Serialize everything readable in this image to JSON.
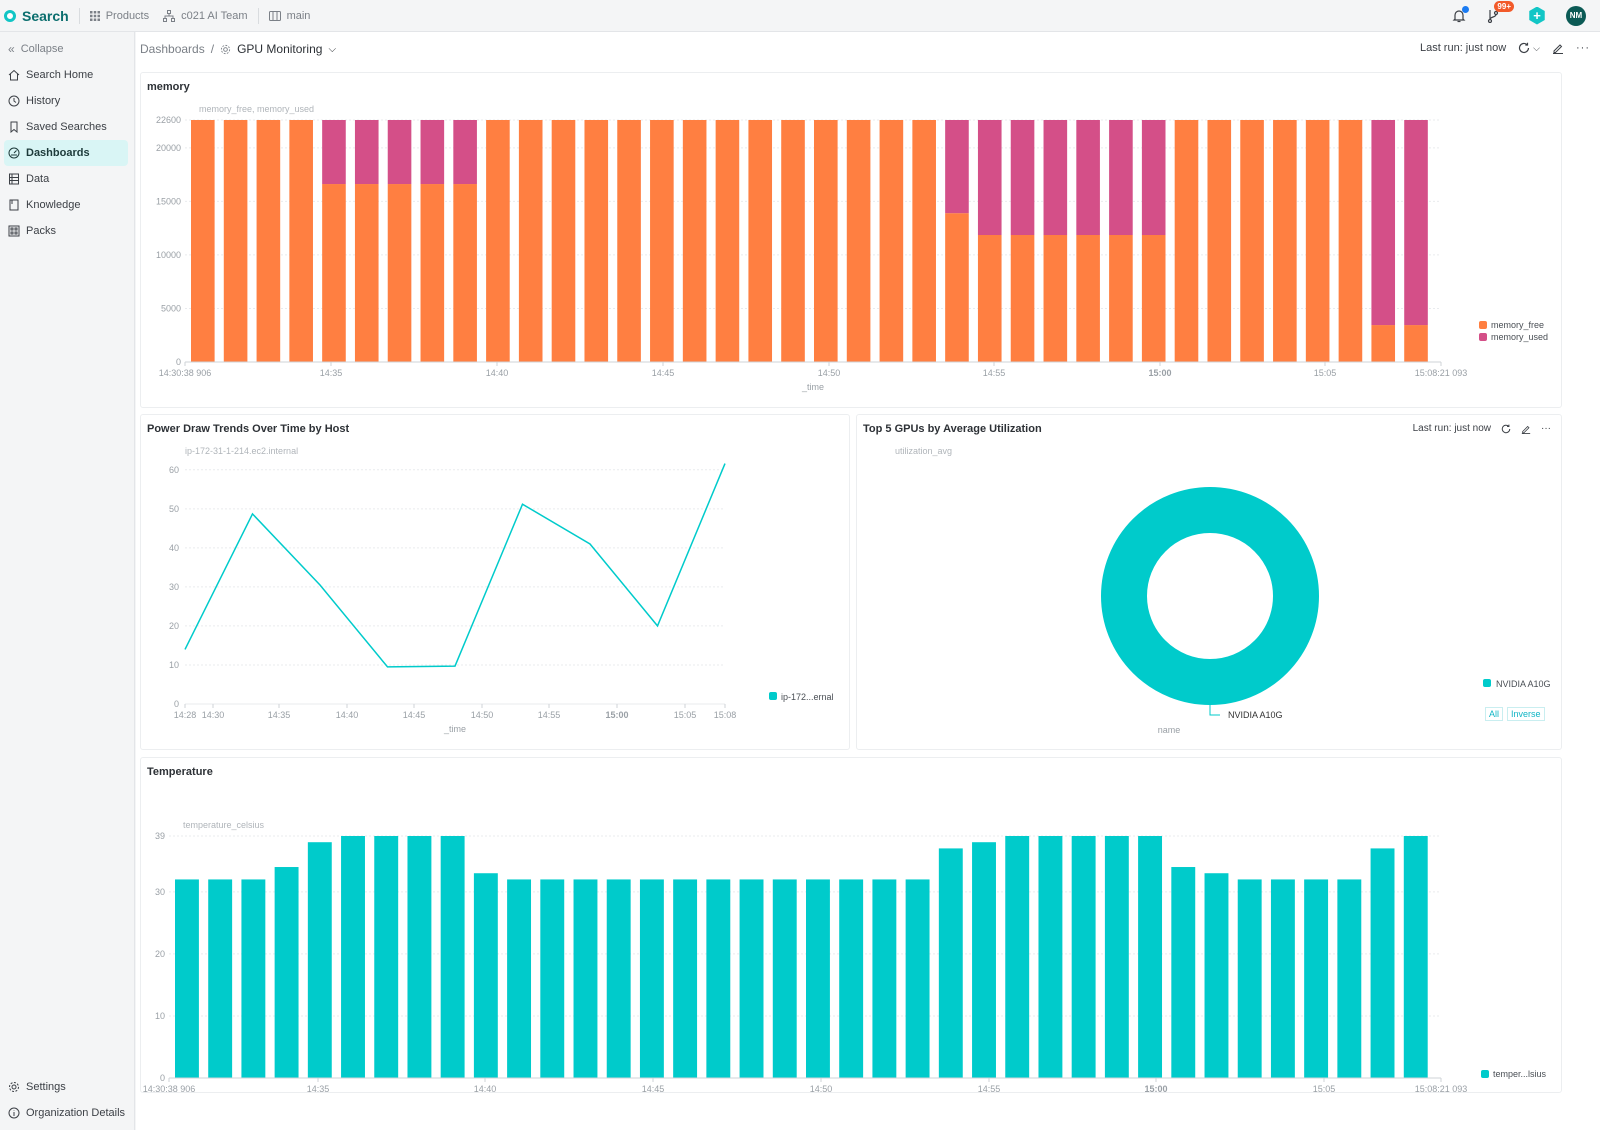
{
  "topbar": {
    "brand": "Search",
    "products": "Products",
    "team": "c021 AI Team",
    "branch": "main",
    "notifications_badge": "99+",
    "avatar_initials": "NM"
  },
  "sidebar": {
    "collapse": "Collapse",
    "items": [
      {
        "label": "Search Home",
        "icon": "home-icon"
      },
      {
        "label": "History",
        "icon": "clock-icon"
      },
      {
        "label": "Saved Searches",
        "icon": "bookmark-icon"
      },
      {
        "label": "Dashboards",
        "icon": "gauge-icon",
        "active": true
      },
      {
        "label": "Data",
        "icon": "table-icon"
      },
      {
        "label": "Knowledge",
        "icon": "book-icon"
      },
      {
        "label": "Packs",
        "icon": "grid-icon"
      }
    ],
    "bottom": [
      {
        "label": "Settings",
        "icon": "gear-icon"
      },
      {
        "label": "Organization Details",
        "icon": "info-icon"
      }
    ]
  },
  "header": {
    "breadcrumb_root": "Dashboards",
    "separator": "/",
    "dashboard_name": "GPU Monitoring",
    "last_run": "Last run: just now"
  },
  "panels": {
    "memory": {
      "title": "memory",
      "series_label": "memory_free, memory_used",
      "xlabel": "_time"
    },
    "power": {
      "title": "Power Draw Trends Over Time by Host",
      "series_label": "ip-172-31-1-214.ec2.internal",
      "xlabel": "_time",
      "legend": "ip-172...ernal"
    },
    "gpus": {
      "title": "Top 5 GPUs by Average Utilization",
      "series_label": "utilization_avg",
      "last_run": "Last run: just now",
      "xlabel": "name",
      "legend": "NVIDIA A10G",
      "slice_label": "NVIDIA A10G",
      "btn_all": "All",
      "btn_inverse": "Inverse"
    },
    "temperature": {
      "title": "Temperature",
      "series_label": "temperature_celsius",
      "xlabel": "_time",
      "legend": "temper...lsius"
    }
  },
  "colors": {
    "orange": "#ff7f41",
    "magenta": "#d44f88",
    "teal": "#00cbcb",
    "accent": "#10c5c5"
  },
  "chart_data": [
    {
      "type": "bar",
      "title": "memory",
      "stacked": true,
      "xlabel": "_time",
      "ylabel": "memory_free, memory_used",
      "ylim": [
        0,
        22600
      ],
      "yticks": [
        0,
        5000,
        10000,
        15000,
        20000,
        22600
      ],
      "xticks": [
        "14:30:38 906",
        "14:35",
        "14:40",
        "14:45",
        "14:50",
        "14:55",
        "15:00",
        "15:05",
        "15:08:21 093"
      ],
      "legend_position": "right",
      "series": [
        {
          "name": "memory_free",
          "color": "#ff7f41",
          "values": [
            22600,
            22600,
            22600,
            22600,
            16620,
            16620,
            16620,
            16620,
            16620,
            22600,
            22600,
            22600,
            22600,
            22600,
            22600,
            22600,
            22600,
            22600,
            22600,
            22600,
            22600,
            22600,
            22600,
            13900,
            11860,
            11860,
            11860,
            11860,
            11860,
            11860,
            22600,
            22600,
            22600,
            22600,
            22600,
            22600,
            3450,
            3450
          ]
        },
        {
          "name": "memory_used",
          "color": "#d44f88",
          "values": [
            0,
            0,
            0,
            0,
            5980,
            5980,
            5980,
            5980,
            5980,
            0,
            0,
            0,
            0,
            0,
            0,
            0,
            0,
            0,
            0,
            0,
            0,
            0,
            0,
            8700,
            10740,
            10740,
            10740,
            10740,
            10740,
            10740,
            0,
            0,
            0,
            0,
            0,
            0,
            19150,
            19150
          ]
        }
      ]
    },
    {
      "type": "line",
      "title": "Power Draw Trends Over Time by Host",
      "xlabel": "_time",
      "ylim": [
        0,
        62
      ],
      "yticks": [
        0,
        10,
        20,
        30,
        40,
        50,
        60
      ],
      "xticks": [
        "14:28",
        "14:30",
        "14:35",
        "14:40",
        "14:45",
        "14:50",
        "14:55",
        "15:00",
        "15:05",
        "15:08"
      ],
      "series": [
        {
          "name": "ip-172-31-1-214.ec2.internal",
          "color": "#00cbcb",
          "x": [
            "14:28",
            "14:33",
            "14:38",
            "14:43",
            "14:48",
            "14:53",
            "14:58",
            "15:03",
            "15:08"
          ],
          "values": [
            14,
            48.7,
            30.5,
            9.5,
            9.7,
            51.2,
            41,
            20,
            61.6
          ]
        }
      ]
    },
    {
      "type": "pie",
      "title": "Top 5 GPUs by Average Utilization",
      "donut": true,
      "ylabel": "utilization_avg",
      "xlabel": "name",
      "categories": [
        "NVIDIA A10G"
      ],
      "values": [
        100
      ],
      "colors": [
        "#00cbcb"
      ]
    },
    {
      "type": "bar",
      "title": "Temperature",
      "xlabel": "_time",
      "ylabel": "temperature_celsius",
      "ylim": [
        0,
        39
      ],
      "yticks": [
        0,
        10,
        20,
        30,
        39
      ],
      "xticks": [
        "14:30:38 906",
        "14:35",
        "14:40",
        "14:45",
        "14:50",
        "14:55",
        "15:00",
        "15:05",
        "15:08:21 093"
      ],
      "series": [
        {
          "name": "temperature_celsius",
          "color": "#00cbcb",
          "values": [
            32,
            32,
            32,
            34,
            38,
            39,
            39,
            39,
            39,
            33,
            32,
            32,
            32,
            32,
            32,
            32,
            32,
            32,
            32,
            32,
            32,
            32,
            32,
            37,
            38,
            39,
            39,
            39,
            39,
            39,
            34,
            33,
            32,
            32,
            32,
            32,
            37,
            39
          ]
        }
      ]
    }
  ]
}
